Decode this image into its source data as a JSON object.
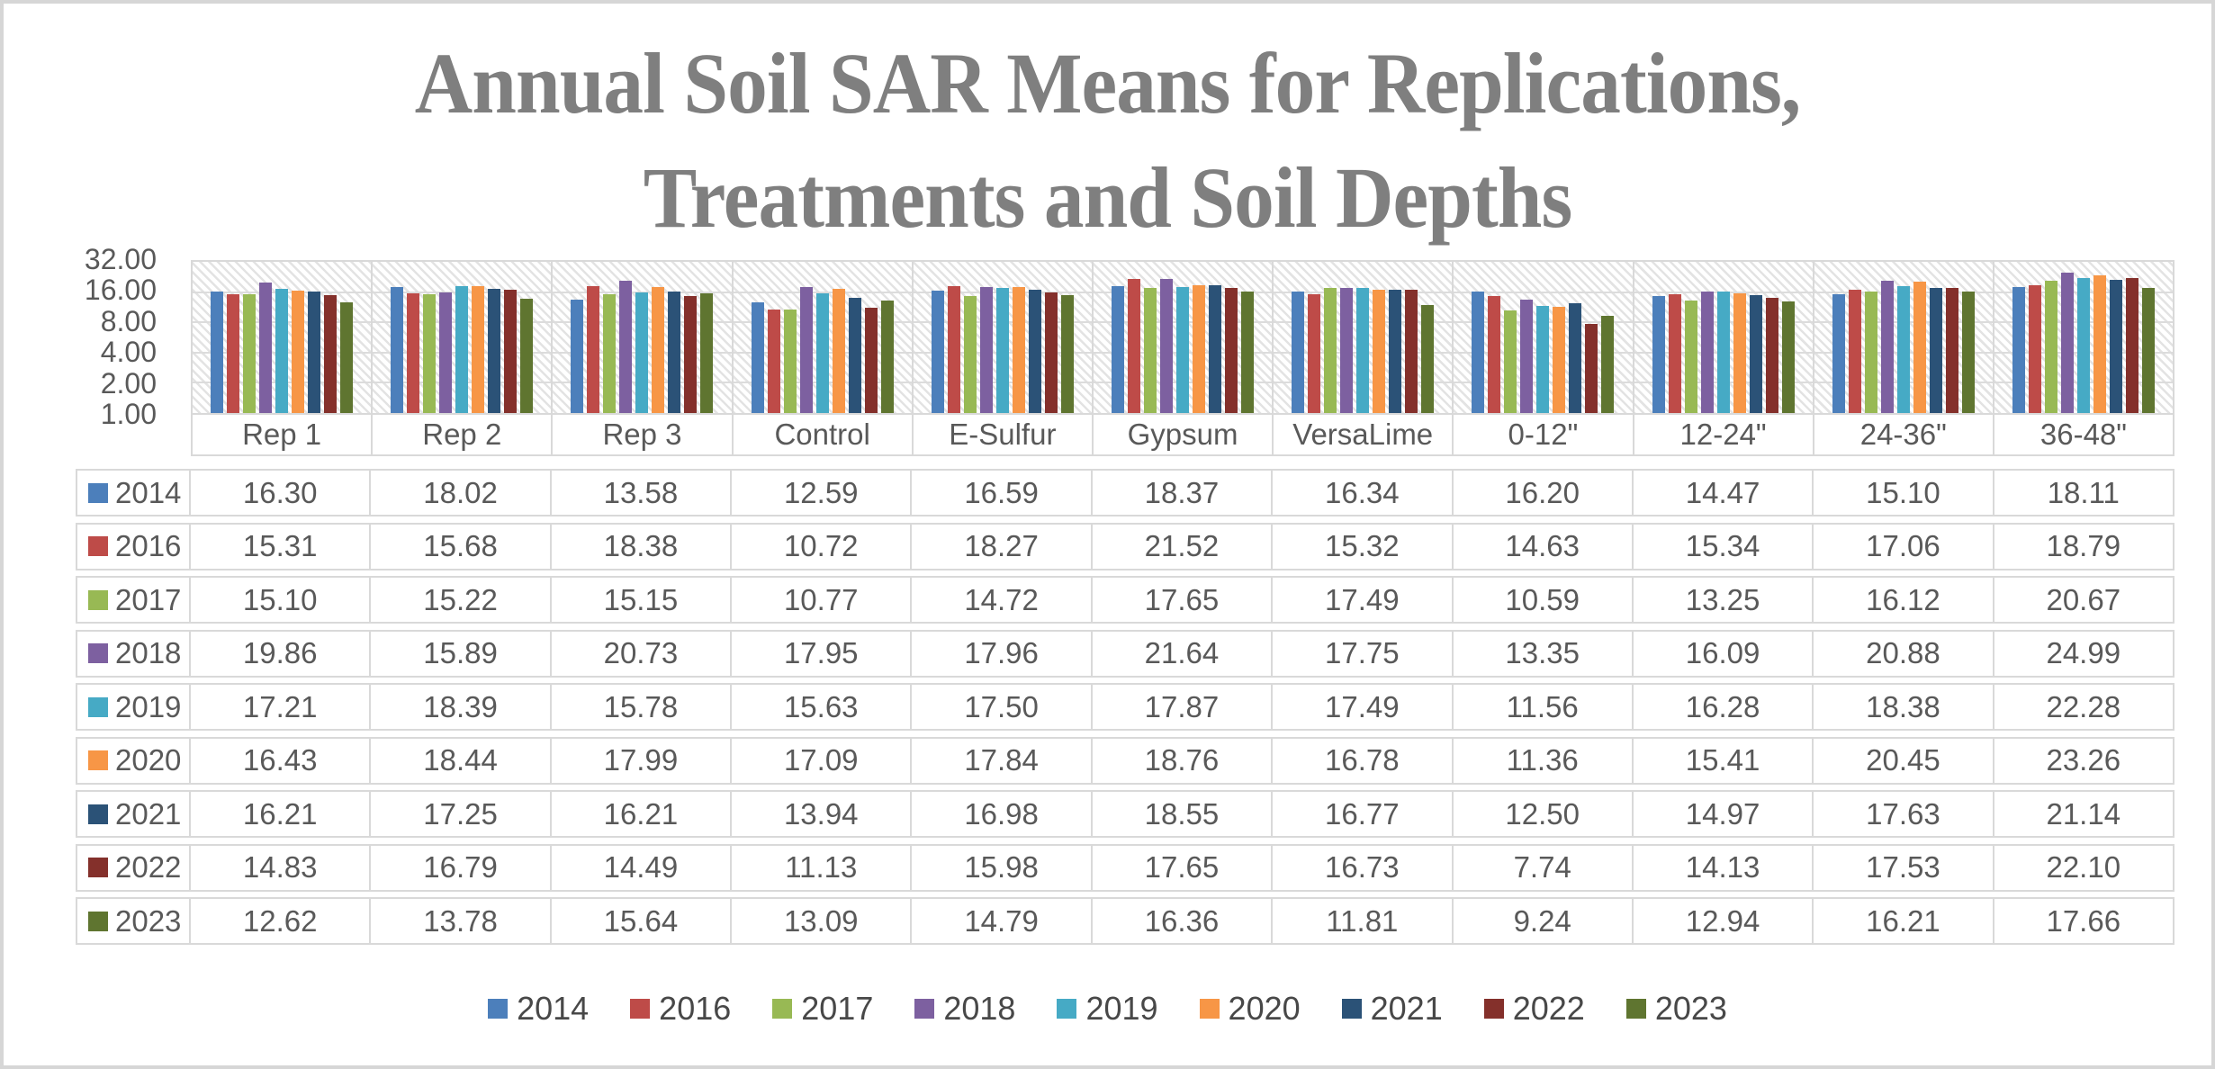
{
  "title": {
    "lines": [
      "Annual Soil SAR Means for Replications,",
      "Treatments and Soil Depths"
    ]
  },
  "chart_data": {
    "type": "bar",
    "title": "Annual Soil SAR Means for Replications, Treatments and Soil Depths",
    "xlabel": "",
    "ylabel": "",
    "y_axis": {
      "scale": "log2",
      "min": 1,
      "max": 32,
      "ticks": [
        "32.00",
        "16.00",
        "8.00",
        "4.00",
        "2.00",
        "1.00"
      ]
    },
    "grid": "horizontal-major",
    "plot_background": "light-diagonal-hatch",
    "legend_position": "bottom",
    "value_format": "2-decimals",
    "categories": [
      "Rep 1",
      "Rep 2",
      "Rep 3",
      "Control",
      "E-Sulfur",
      "Gypsum",
      "VersaLime",
      "0-12\"",
      "12-24\"",
      "24-36\"",
      "36-48\""
    ],
    "series": [
      {
        "name": "2014",
        "color": "#4C7FBB",
        "values": [
          16.3,
          18.02,
          13.58,
          12.59,
          16.59,
          18.37,
          16.34,
          16.2,
          14.47,
          15.1,
          18.11
        ]
      },
      {
        "name": "2016",
        "color": "#BE4B48",
        "values": [
          15.31,
          15.68,
          18.38,
          10.72,
          18.27,
          21.52,
          15.32,
          14.63,
          15.34,
          17.06,
          18.79
        ]
      },
      {
        "name": "2017",
        "color": "#98B954",
        "values": [
          15.1,
          15.22,
          15.15,
          10.77,
          14.72,
          17.65,
          17.49,
          10.59,
          13.25,
          16.12,
          20.67
        ]
      },
      {
        "name": "2018",
        "color": "#7D60A0",
        "values": [
          19.86,
          15.89,
          20.73,
          17.95,
          17.96,
          21.64,
          17.75,
          13.35,
          16.09,
          20.88,
          24.99
        ]
      },
      {
        "name": "2019",
        "color": "#46AAC5",
        "values": [
          17.21,
          18.39,
          15.78,
          15.63,
          17.5,
          17.87,
          17.49,
          11.56,
          16.28,
          18.38,
          22.28
        ]
      },
      {
        "name": "2020",
        "color": "#F79646",
        "values": [
          16.43,
          18.44,
          17.99,
          17.09,
          17.84,
          18.76,
          16.78,
          11.36,
          15.41,
          20.45,
          23.26
        ]
      },
      {
        "name": "2021",
        "color": "#2B5277",
        "values": [
          16.21,
          17.25,
          16.21,
          13.94,
          16.98,
          18.55,
          16.77,
          12.5,
          14.97,
          17.63,
          21.14
        ]
      },
      {
        "name": "2022",
        "color": "#84302B",
        "values": [
          14.83,
          16.79,
          14.49,
          11.13,
          15.98,
          17.65,
          16.73,
          7.74,
          14.13,
          17.53,
          22.1
        ]
      },
      {
        "name": "2023",
        "color": "#5F7530",
        "values": [
          12.62,
          13.78,
          15.64,
          13.09,
          14.79,
          16.36,
          11.81,
          9.24,
          12.94,
          16.21,
          17.66
        ]
      }
    ]
  },
  "colors": {
    "title_text": "#7f7f7f",
    "axis_text": "#595959",
    "table_text": "#595959",
    "legend_text": "#484848",
    "gridline": "#d9d9d9",
    "border": "#d6d6d6"
  }
}
